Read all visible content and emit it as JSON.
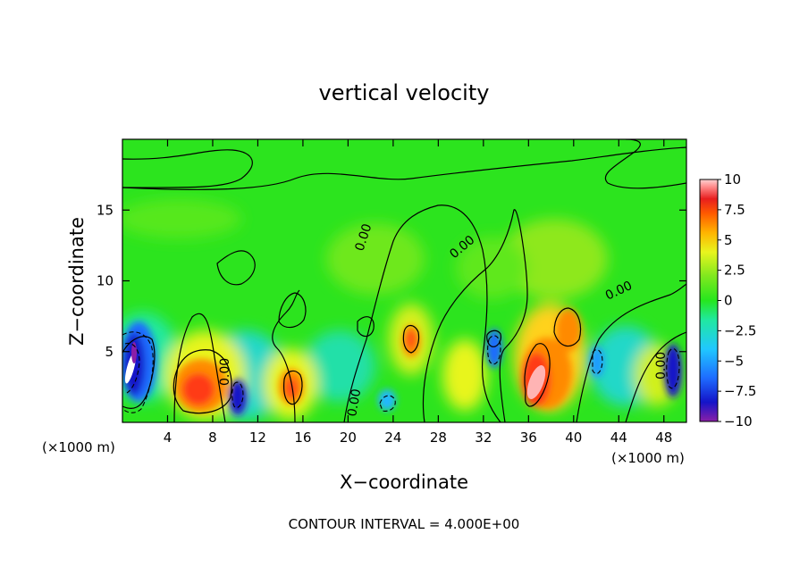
{
  "chart_data": {
    "type": "heatmap",
    "title": "vertical velocity",
    "xlabel": "X−coordinate",
    "ylabel": "Z−coordinate",
    "x_unit_left": "(×1000 m)",
    "x_unit_right": "(×1000 m)",
    "xlim": [
      0,
      50
    ],
    "ylim": [
      0,
      20
    ],
    "x_ticks": [
      4,
      8,
      12,
      16,
      20,
      24,
      28,
      32,
      36,
      40,
      44,
      48
    ],
    "y_ticks": [
      5,
      10,
      15
    ],
    "colorbar": {
      "ticks": [
        10,
        7.5,
        5,
        2.5,
        0,
        -2.5,
        -5,
        -7.5,
        -10
      ],
      "tick_labels": [
        "10",
        "7.5",
        "5",
        "2.5",
        "0",
        "−2.5",
        "−5",
        "−7.5",
        "−10"
      ],
      "range": [
        -10,
        10
      ],
      "colors": [
        "#8a1fa8",
        "#1414c8",
        "#1e6cff",
        "#20c8ff",
        "#20e8a0",
        "#26e61e",
        "#7fe81e",
        "#e8f51e",
        "#ffb400",
        "#ff5a00",
        "#e81e1e",
        "#ff8c8c",
        "#ffd2d2"
      ]
    },
    "contour_labels": [
      "0.00",
      "0.00",
      "0.00",
      "0.00",
      "0.00",
      "0.00"
    ],
    "annotation": "CONTOUR INTERVAL = 4.000E+00",
    "grid": false
  }
}
